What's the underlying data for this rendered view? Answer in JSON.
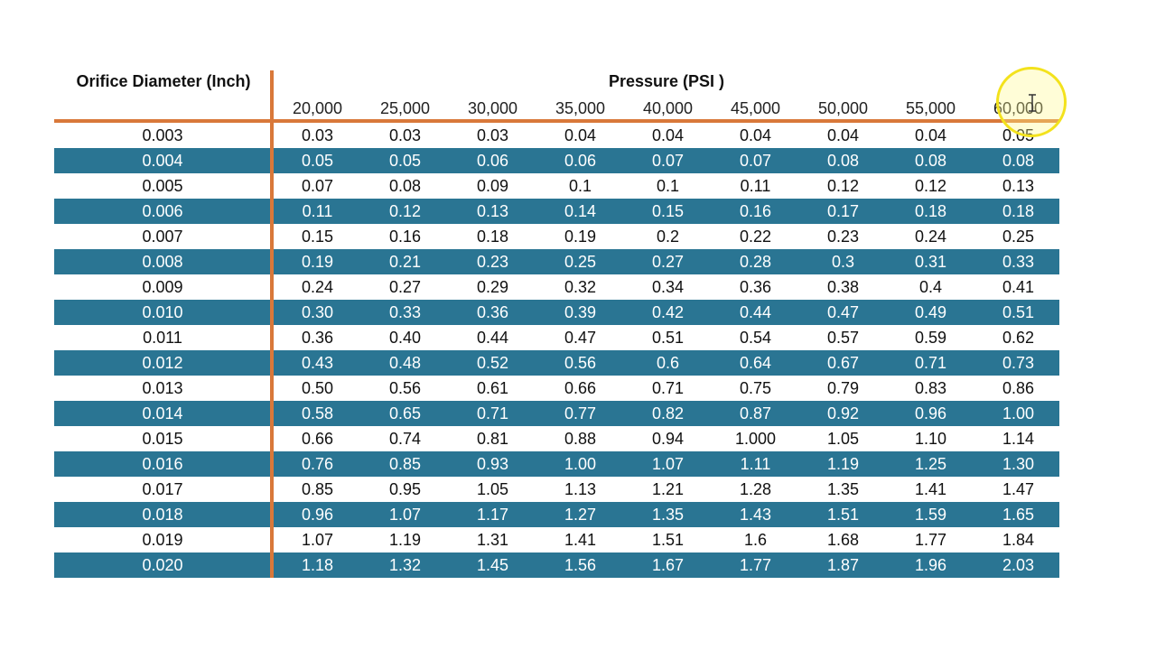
{
  "table": {
    "corner_header": "Orifice Diameter (Inch)",
    "group_header": "Pressure (PSI )",
    "columns": [
      "20,000",
      "25,000",
      "30,000",
      "35,000",
      "40,000",
      "45,000",
      "50,000",
      "55,000",
      "60,000"
    ],
    "rows": [
      {
        "label": "0.003",
        "values": [
          "0.03",
          "0.03",
          "0.03",
          "0.04",
          "0.04",
          "0.04",
          "0.04",
          "0.04",
          "0.05"
        ]
      },
      {
        "label": "0.004",
        "values": [
          "0.05",
          "0.05",
          "0.06",
          "0.06",
          "0.07",
          "0.07",
          "0.08",
          "0.08",
          "0.08"
        ]
      },
      {
        "label": "0.005",
        "values": [
          "0.07",
          "0.08",
          "0.09",
          "0.1",
          "0.1",
          "0.11",
          "0.12",
          "0.12",
          "0.13"
        ]
      },
      {
        "label": "0.006",
        "values": [
          "0.11",
          "0.12",
          "0.13",
          "0.14",
          "0.15",
          "0.16",
          "0.17",
          "0.18",
          "0.18"
        ]
      },
      {
        "label": "0.007",
        "values": [
          "0.15",
          "0.16",
          "0.18",
          "0.19",
          "0.2",
          "0.22",
          "0.23",
          "0.24",
          "0.25"
        ]
      },
      {
        "label": "0.008",
        "values": [
          "0.19",
          "0.21",
          "0.23",
          "0.25",
          "0.27",
          "0.28",
          "0.3",
          "0.31",
          "0.33"
        ]
      },
      {
        "label": "0.009",
        "values": [
          "0.24",
          "0.27",
          "0.29",
          "0.32",
          "0.34",
          "0.36",
          "0.38",
          "0.4",
          "0.41"
        ]
      },
      {
        "label": "0.010",
        "values": [
          "0.30",
          "0.33",
          "0.36",
          "0.39",
          "0.42",
          "0.44",
          "0.47",
          "0.49",
          "0.51"
        ]
      },
      {
        "label": "0.011",
        "values": [
          "0.36",
          "0.40",
          "0.44",
          "0.47",
          "0.51",
          "0.54",
          "0.57",
          "0.59",
          "0.62"
        ]
      },
      {
        "label": "0.012",
        "values": [
          "0.43",
          "0.48",
          "0.52",
          "0.56",
          "0.6",
          "0.64",
          "0.67",
          "0.71",
          "0.73"
        ]
      },
      {
        "label": "0.013",
        "values": [
          "0.50",
          "0.56",
          "0.61",
          "0.66",
          "0.71",
          "0.75",
          "0.79",
          "0.83",
          "0.86"
        ]
      },
      {
        "label": "0.014",
        "values": [
          "0.58",
          "0.65",
          "0.71",
          "0.77",
          "0.82",
          "0.87",
          "0.92",
          "0.96",
          "1.00"
        ]
      },
      {
        "label": "0.015",
        "values": [
          "0.66",
          "0.74",
          "0.81",
          "0.88",
          "0.94",
          "1.000",
          "1.05",
          "1.10",
          "1.14"
        ]
      },
      {
        "label": "0.016",
        "values": [
          "0.76",
          "0.85",
          "0.93",
          "1.00",
          "1.07",
          "1.11",
          "1.19",
          "1.25",
          "1.30"
        ]
      },
      {
        "label": "0.017",
        "values": [
          "0.85",
          "0.95",
          "1.05",
          "1.13",
          "1.21",
          "1.28",
          "1.35",
          "1.41",
          "1.47"
        ]
      },
      {
        "label": "0.018",
        "values": [
          "0.96",
          "1.07",
          "1.17",
          "1.27",
          "1.35",
          "1.43",
          "1.51",
          "1.59",
          "1.65"
        ]
      },
      {
        "label": "0.019",
        "values": [
          "1.07",
          "1.19",
          "1.31",
          "1.41",
          "1.51",
          "1.6",
          "1.68",
          "1.77",
          "1.84"
        ]
      },
      {
        "label": "0.020",
        "values": [
          "1.18",
          "1.32",
          "1.45",
          "1.56",
          "1.67",
          "1.77",
          "1.87",
          "1.96",
          "2.03"
        ]
      }
    ]
  },
  "colors": {
    "accent_rule": "#d9783a",
    "shaded_row": "#2a7593",
    "cursor_highlight": "#f3e21c"
  },
  "overlay": {
    "cursor_icon": "text-cursor-icon",
    "highlight_icon": "cursor-highlight-circle"
  }
}
